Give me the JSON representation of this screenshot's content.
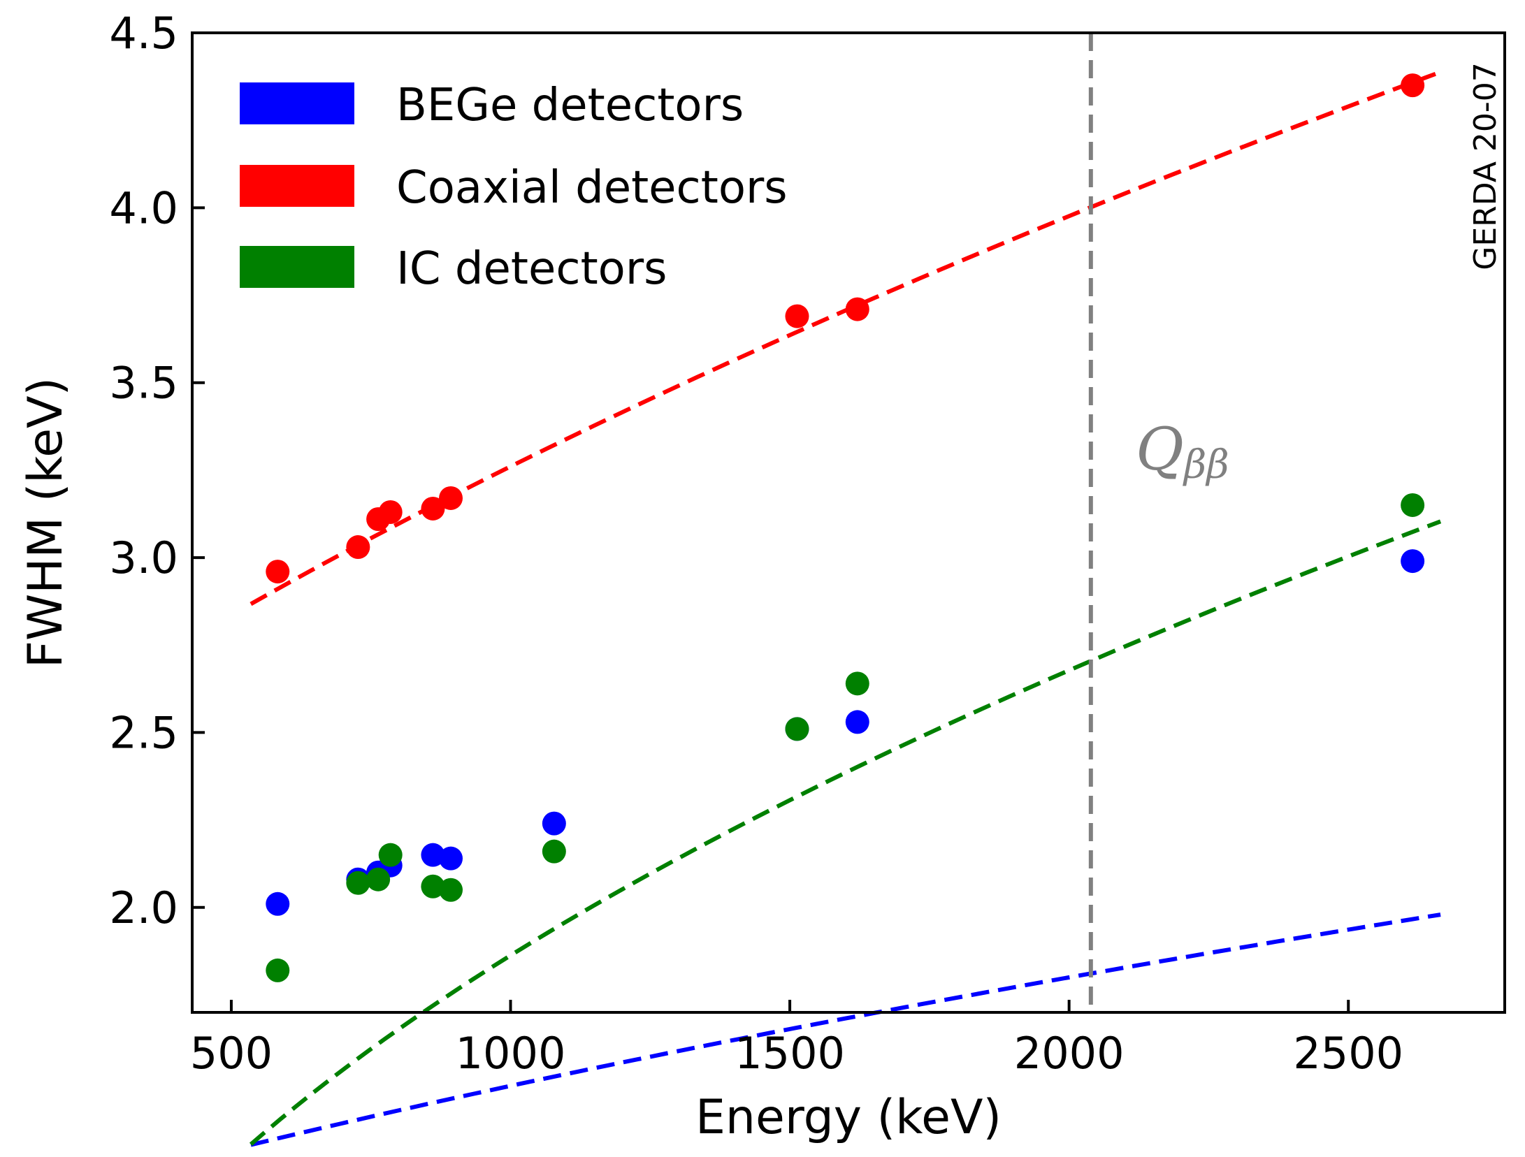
{
  "chart_data": {
    "type": "scatter",
    "title": "",
    "xlabel": "Energy (keV)",
    "ylabel": "FWHM (keV)",
    "xlim": [
      430,
      2780
    ],
    "ylim": [
      1.7,
      4.5
    ],
    "xticks": [
      500,
      1000,
      1500,
      2000,
      2500
    ],
    "yticks": [
      2.0,
      2.5,
      3.0,
      3.5,
      4.0,
      4.5
    ],
    "xtick_labels": [
      "500",
      "1000",
      "1500",
      "2000",
      "2500"
    ],
    "ytick_labels": [
      "2.0",
      "2.5",
      "3.0",
      "3.5",
      "4.0",
      "4.5"
    ],
    "legend_position": "top-left",
    "series": [
      {
        "name": "BEGe detectors",
        "color": "#0000ff",
        "x": [
          583,
          727,
          763,
          785,
          861,
          893,
          1078,
          1513,
          1621,
          2615
        ],
        "y": [
          2.01,
          2.08,
          2.1,
          2.12,
          2.15,
          2.14,
          2.24,
          2.51,
          2.53,
          2.99
        ],
        "fit_x": [
          535,
          2665
        ],
        "fit_a": 1.2,
        "fit_b": 0.00102
      },
      {
        "name": "Coaxial detectors",
        "color": "#ff0000",
        "x": [
          583,
          727,
          763,
          785,
          861,
          893,
          1513,
          1621,
          2615
        ],
        "y": [
          2.96,
          3.03,
          3.11,
          3.13,
          3.14,
          3.17,
          3.69,
          3.71,
          4.35
        ],
        "fit_x": [
          535,
          2665
        ],
        "fit_a": 5.45,
        "fit_b": 0.00518
      },
      {
        "name": "IC detectors",
        "color": "#008000",
        "x": [
          583,
          727,
          763,
          785,
          861,
          893,
          1078,
          1513,
          1621,
          2615
        ],
        "y": [
          1.82,
          2.07,
          2.08,
          2.15,
          2.06,
          2.05,
          2.16,
          2.51,
          2.64,
          3.15
        ],
        "fit_x": [
          535,
          2665
        ],
        "fit_a": -0.23,
        "fit_b": 0.0037
      }
    ],
    "vline": {
      "x": 2039,
      "color": "#808080",
      "label": "Qββ"
    },
    "annotation": "GERDA 20-07"
  }
}
